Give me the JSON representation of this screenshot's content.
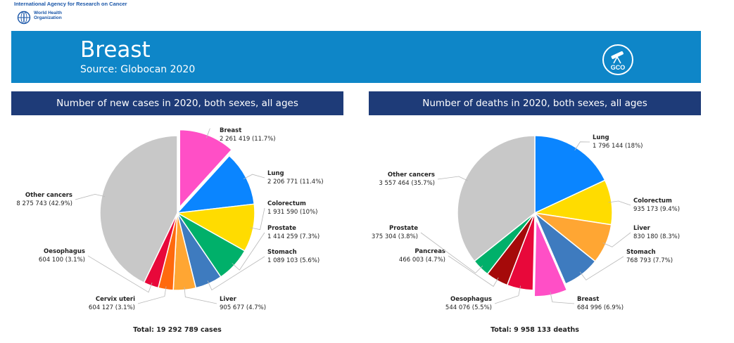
{
  "org": {
    "iarc_name": "International Agency for Research on Cancer",
    "who_name": "World Health Organization",
    "who_line1": "World Health",
    "who_line2": "Organization"
  },
  "banner": {
    "title": "Breast",
    "subtitle": "Source: Globocan 2020",
    "logo_text": "GCO"
  },
  "chart_data": [
    {
      "type": "pie",
      "title": "Number of new cases in 2020, both sexes, all ages",
      "total": "Total: 19 292 789 cases",
      "slices": [
        {
          "name": "Breast",
          "value": 2261419,
          "label": "2 261 419 (11.7%)",
          "percent": 11.7,
          "color": "#ff4fc6",
          "exploded": true
        },
        {
          "name": "Lung",
          "value": 2206771,
          "label": "2 206 771 (11.4%)",
          "percent": 11.4,
          "color": "#0a85ff"
        },
        {
          "name": "Colorectum",
          "value": 1931590,
          "label": "1 931 590 (10%)",
          "percent": 10.0,
          "color": "#ffdc00"
        },
        {
          "name": "Prostate",
          "value": 1414259,
          "label": "1 414 259 (7.3%)",
          "percent": 7.3,
          "color": "#00b06a"
        },
        {
          "name": "Stomach",
          "value": 1089103,
          "label": "1 089 103 (5.6%)",
          "percent": 5.6,
          "color": "#3e7bbf"
        },
        {
          "name": "Liver",
          "value": 905677,
          "label": "905 677 (4.7%)",
          "percent": 4.7,
          "color": "#ffa633"
        },
        {
          "name": "Cervix uteri",
          "value": 604127,
          "label": "604 127 (3.1%)",
          "percent": 3.1,
          "color": "#ff6a0e"
        },
        {
          "name": "Oesophagus",
          "value": 604100,
          "label": "604 100 (3.1%)",
          "percent": 3.1,
          "color": "#e8083a"
        },
        {
          "name": "Other cancers",
          "value": 8275743,
          "label": "8 275 743 (42.9%)",
          "percent": 42.9,
          "color": "#c8c8c8"
        }
      ]
    },
    {
      "type": "pie",
      "title": "Number of deaths in 2020, both sexes, all ages",
      "total": "Total: 9 958 133 deaths",
      "slices": [
        {
          "name": "Lung",
          "value": 1796144,
          "label": "1 796 144 (18%)",
          "percent": 18.0,
          "color": "#0a85ff"
        },
        {
          "name": "Colorectum",
          "value": 935173,
          "label": "935 173 (9.4%)",
          "percent": 9.4,
          "color": "#ffdc00"
        },
        {
          "name": "Liver",
          "value": 830180,
          "label": "830 180 (8.3%)",
          "percent": 8.3,
          "color": "#ffa633"
        },
        {
          "name": "Stomach",
          "value": 768793,
          "label": "768 793 (7.7%)",
          "percent": 7.7,
          "color": "#3e7bbf"
        },
        {
          "name": "Breast",
          "value": 684996,
          "label": "684 996 (6.9%)",
          "percent": 6.9,
          "color": "#ff4fc6",
          "exploded": true
        },
        {
          "name": "Oesophagus",
          "value": 544076,
          "label": "544 076 (5.5%)",
          "percent": 5.5,
          "color": "#e8083a"
        },
        {
          "name": "Pancreas",
          "value": 466003,
          "label": "466 003 (4.7%)",
          "percent": 4.7,
          "color": "#a50a0a"
        },
        {
          "name": "Prostate",
          "value": 375304,
          "label": "375 304 (3.8%)",
          "percent": 3.8,
          "color": "#00b06a"
        },
        {
          "name": "Other cancers",
          "value": 3557464,
          "label": "3 557 464 (35.7%)",
          "percent": 35.7,
          "color": "#c8c8c8"
        }
      ]
    }
  ]
}
